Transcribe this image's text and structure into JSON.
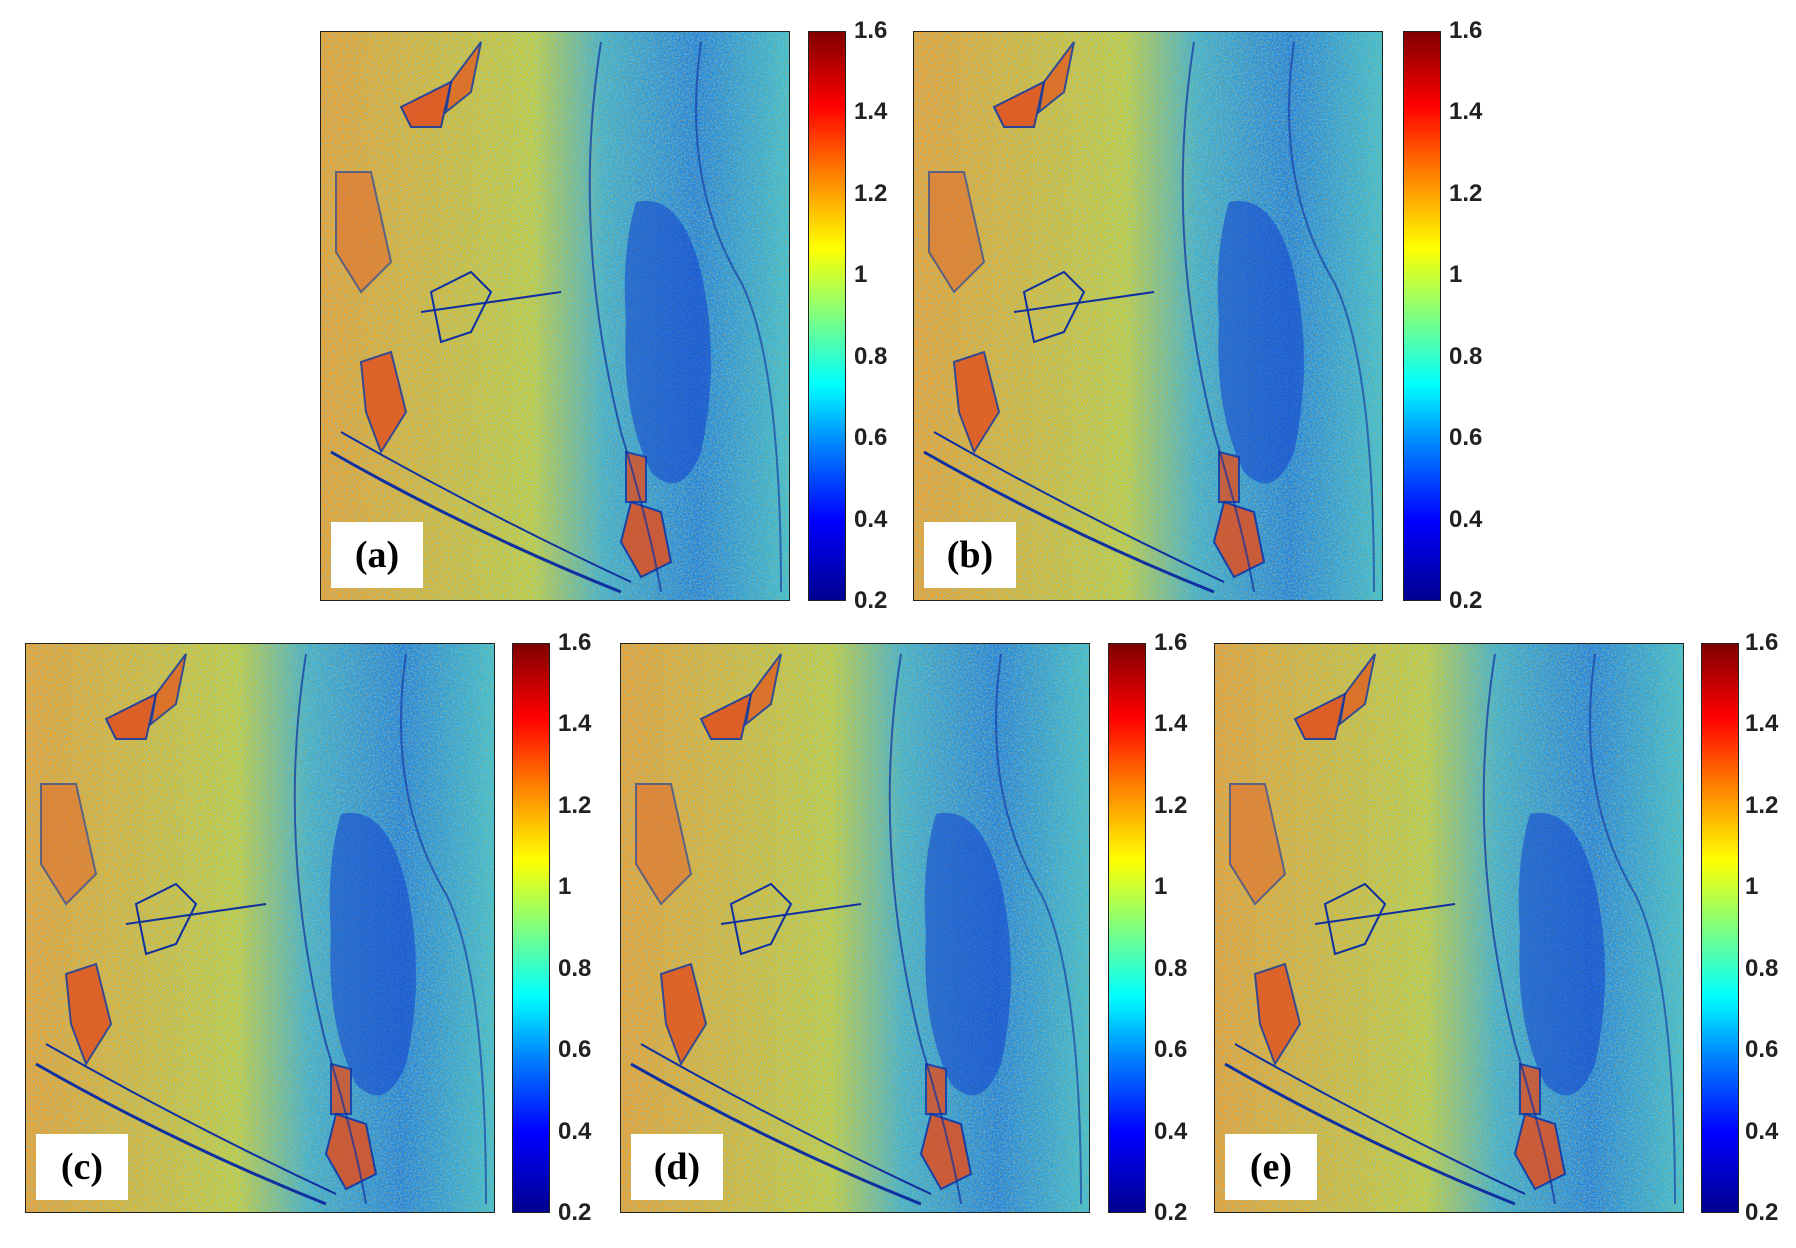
{
  "panels": [
    {
      "label": "(a)"
    },
    {
      "label": "(b)"
    },
    {
      "label": "(c)"
    },
    {
      "label": "(d)"
    },
    {
      "label": "(e)"
    }
  ],
  "colorbar": {
    "ticks": [
      "1.6",
      "1.4",
      "1.2",
      "1",
      "0.8",
      "0.6",
      "0.4",
      "0.2"
    ],
    "min": 0.2,
    "max": 1.6,
    "colormap": "jet"
  },
  "colors": {
    "dark_blue": "#00008f",
    "blue": "#0000ff",
    "cyan": "#00ffff",
    "green": "#80ff80",
    "yellow": "#ffff00",
    "orange": "#ff8000",
    "red": "#ff0000",
    "dark_red": "#800000"
  }
}
